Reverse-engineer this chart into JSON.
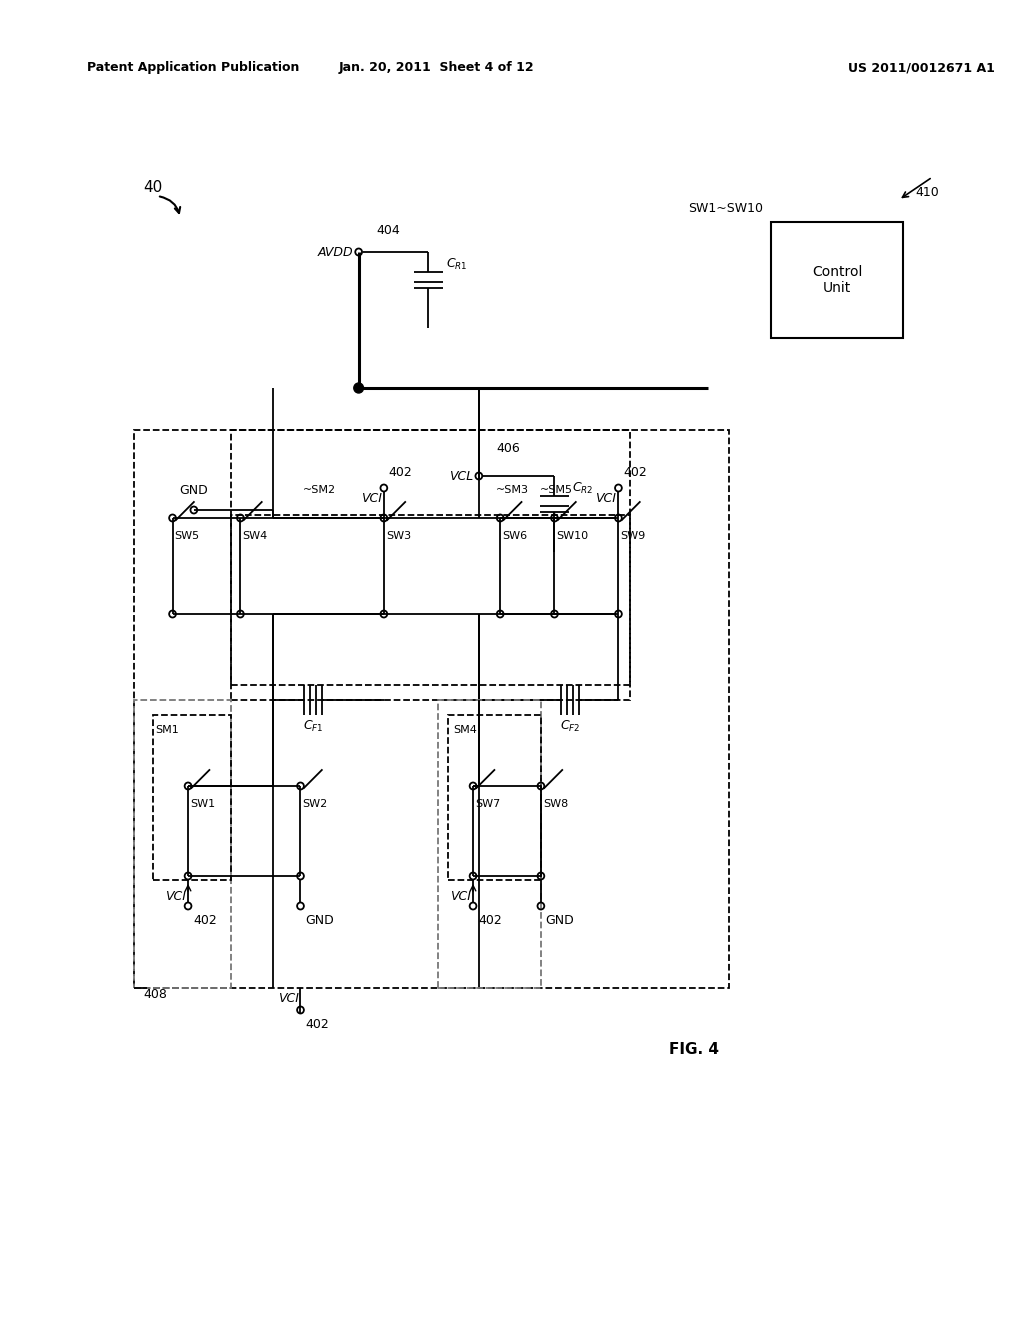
{
  "header_left": "Patent Application Publication",
  "header_center": "Jan. 20, 2011  Sheet 4 of 12",
  "header_right": "US 2011/0012671 A1",
  "fig_label": "FIG. 4",
  "ref_40": "40",
  "ref_404": "404",
  "ref_406": "406",
  "ref_408": "408",
  "ref_410": "410",
  "ref_402": "402",
  "avdd": "AVDD",
  "vcl": "VCL",
  "vci": "VCI",
  "gnd": "GND",
  "control_unit": "Control\nUnit",
  "sw1sw10": "SW1~SW10",
  "cr1": "C_{R1}",
  "cr2": "C_{R2}",
  "cf1": "C_{F1}",
  "cf2": "C_{F2}",
  "sm1": "SM1",
  "sm2": "~SM2",
  "sm3": "~SM3",
  "sm4": "SM4",
  "sm5": "~SM5"
}
